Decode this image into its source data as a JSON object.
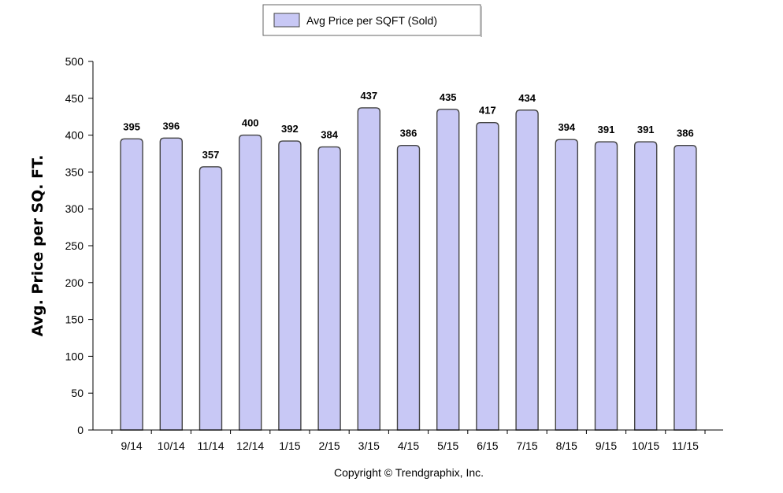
{
  "colors": {
    "bar_fill": "#c8c8f5",
    "bar_stroke": "#444444",
    "axis": "#000000",
    "legend_border": "#666666"
  },
  "legend": {
    "label": "Avg Price per SQFT (Sold)"
  },
  "footer": {
    "copyright": "Copyright © Trendgraphix, Inc."
  },
  "chart_data": {
    "type": "bar",
    "title": "",
    "xlabel": "",
    "ylabel": "Avg. Price per SQ. FT.",
    "ylim": [
      0,
      500
    ],
    "yticks": [
      0,
      50,
      100,
      150,
      200,
      250,
      300,
      350,
      400,
      450,
      500
    ],
    "grid": false,
    "legend_position": "top-center",
    "categories": [
      "9/14",
      "10/14",
      "11/14",
      "12/14",
      "1/15",
      "2/15",
      "3/15",
      "4/15",
      "5/15",
      "6/15",
      "7/15",
      "8/15",
      "9/15",
      "10/15",
      "11/15"
    ],
    "series": [
      {
        "name": "Avg Price per SQFT (Sold)",
        "values": [
          395,
          396,
          357,
          400,
          392,
          384,
          437,
          386,
          435,
          417,
          434,
          394,
          391,
          391,
          386
        ]
      }
    ]
  }
}
